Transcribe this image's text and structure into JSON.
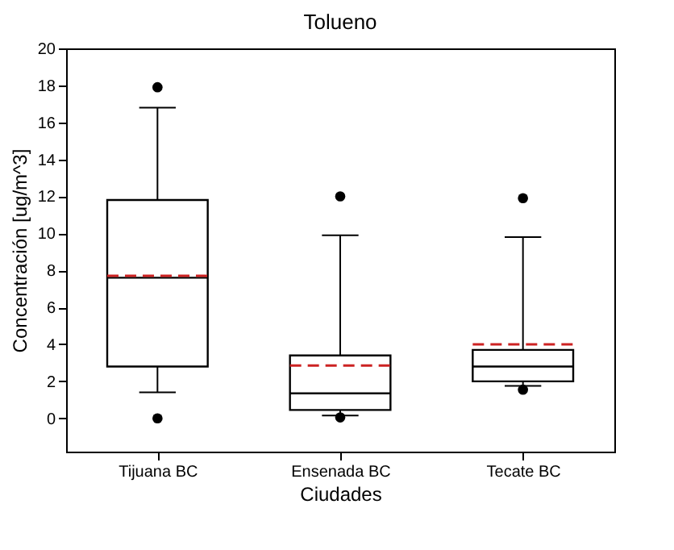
{
  "chart_data": {
    "type": "box",
    "title": "Tolueno",
    "xlabel": "Ciudades",
    "ylabel": "Concentración [ug/m^3]",
    "categories": [
      "Tijuana BC",
      "Ensenada BC",
      "Tecate BC"
    ],
    "boxes": [
      {
        "low": 1.4,
        "q1": 2.8,
        "median": 7.6,
        "q3": 11.8,
        "high": 16.8,
        "mean": 7.7,
        "outliers": [
          17.9,
          0.0
        ]
      },
      {
        "low": 0.15,
        "q1": 0.45,
        "median": 1.35,
        "q3": 3.4,
        "high": 9.9,
        "mean": 2.85,
        "outliers": [
          12.0,
          0.05
        ]
      },
      {
        "low": 1.75,
        "q1": 2.0,
        "median": 2.8,
        "q3": 3.7,
        "high": 9.8,
        "mean": 4.0,
        "outliers": [
          11.9,
          1.55
        ]
      }
    ],
    "color": "#000000",
    "ylim": [
      -1.8,
      20
    ],
    "yticks": [
      0,
      2,
      4,
      6,
      8,
      10,
      12,
      14,
      16,
      18,
      20
    ],
    "grid": false
  }
}
